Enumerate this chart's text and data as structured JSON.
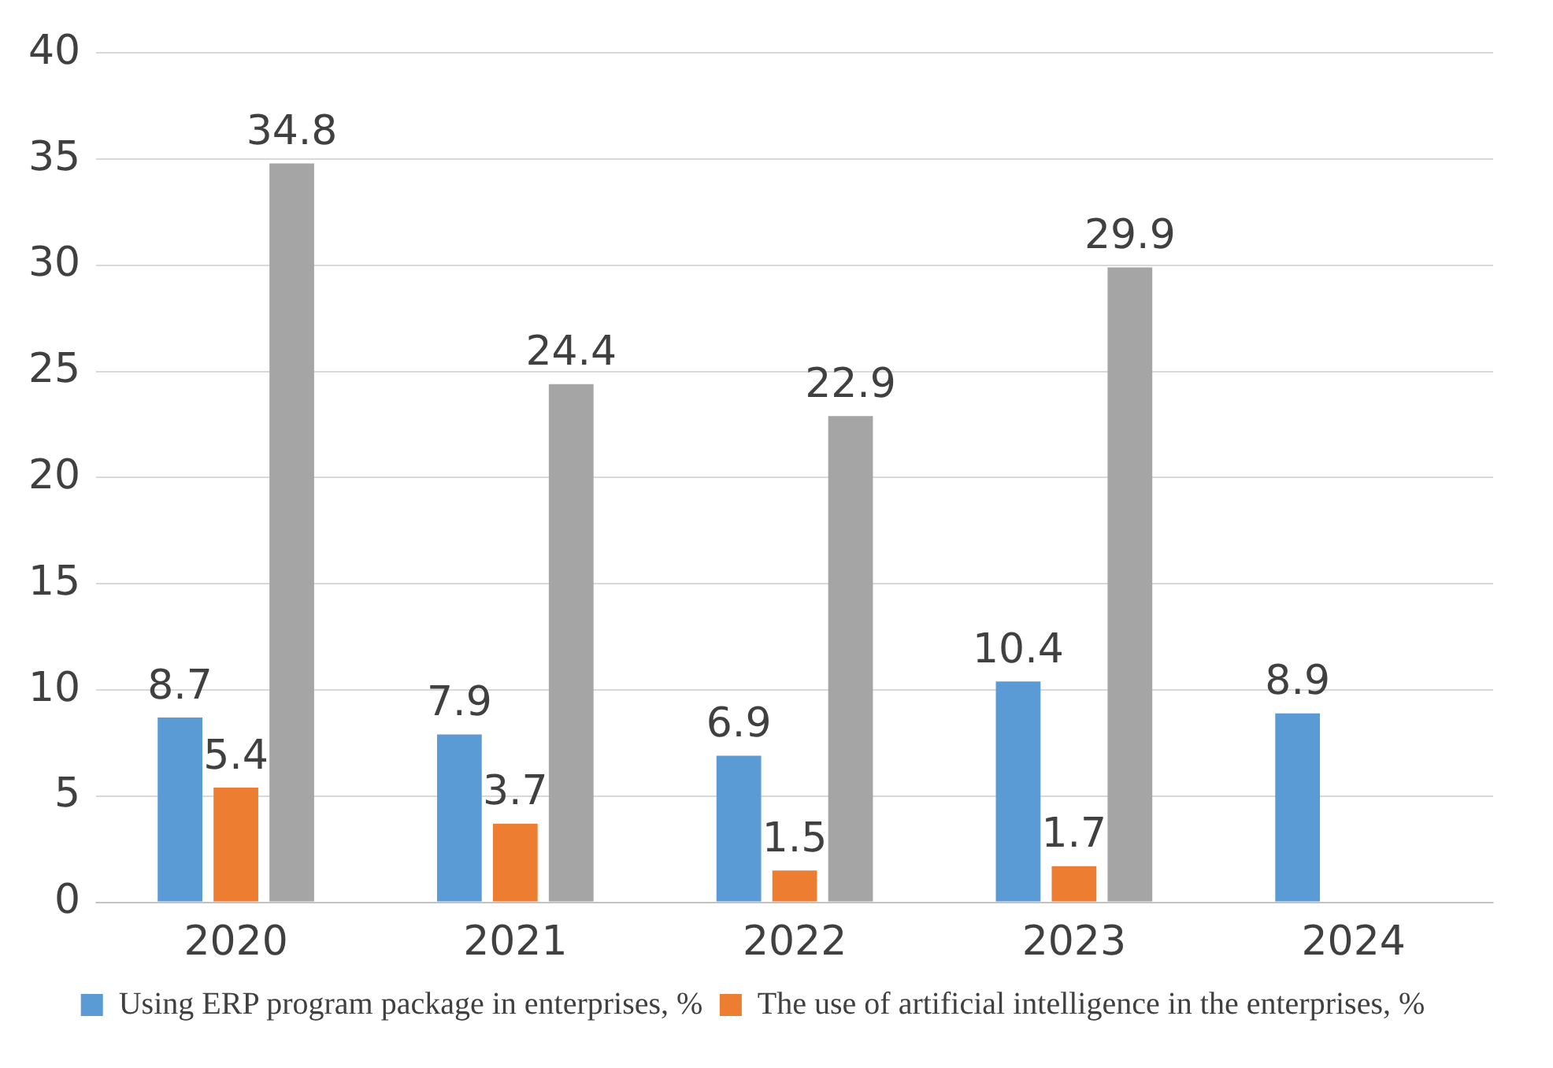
{
  "chart_data": {
    "type": "bar",
    "categories": [
      "2020",
      "2021",
      "2022",
      "2023",
      "2024"
    ],
    "series": [
      {
        "name": "Using ERP program package in enterprises, %",
        "color": "#5b9bd5",
        "values": [
          8.7,
          7.9,
          6.9,
          10.4,
          8.9
        ]
      },
      {
        "name": "The use of artificial intelligence in the enterprises, %",
        "color": "#ed7d31",
        "values": [
          5.4,
          3.7,
          1.5,
          1.7,
          null
        ]
      },
      {
        "color": "#a5a5a5",
        "values": [
          34.8,
          24.4,
          22.9,
          29.9,
          null
        ]
      }
    ],
    "ylim": [
      0,
      40
    ],
    "yticks": [
      0,
      5,
      10,
      15,
      20,
      25,
      30,
      35,
      40
    ],
    "grid": "y",
    "legend": "bottom",
    "data_labels": true
  }
}
